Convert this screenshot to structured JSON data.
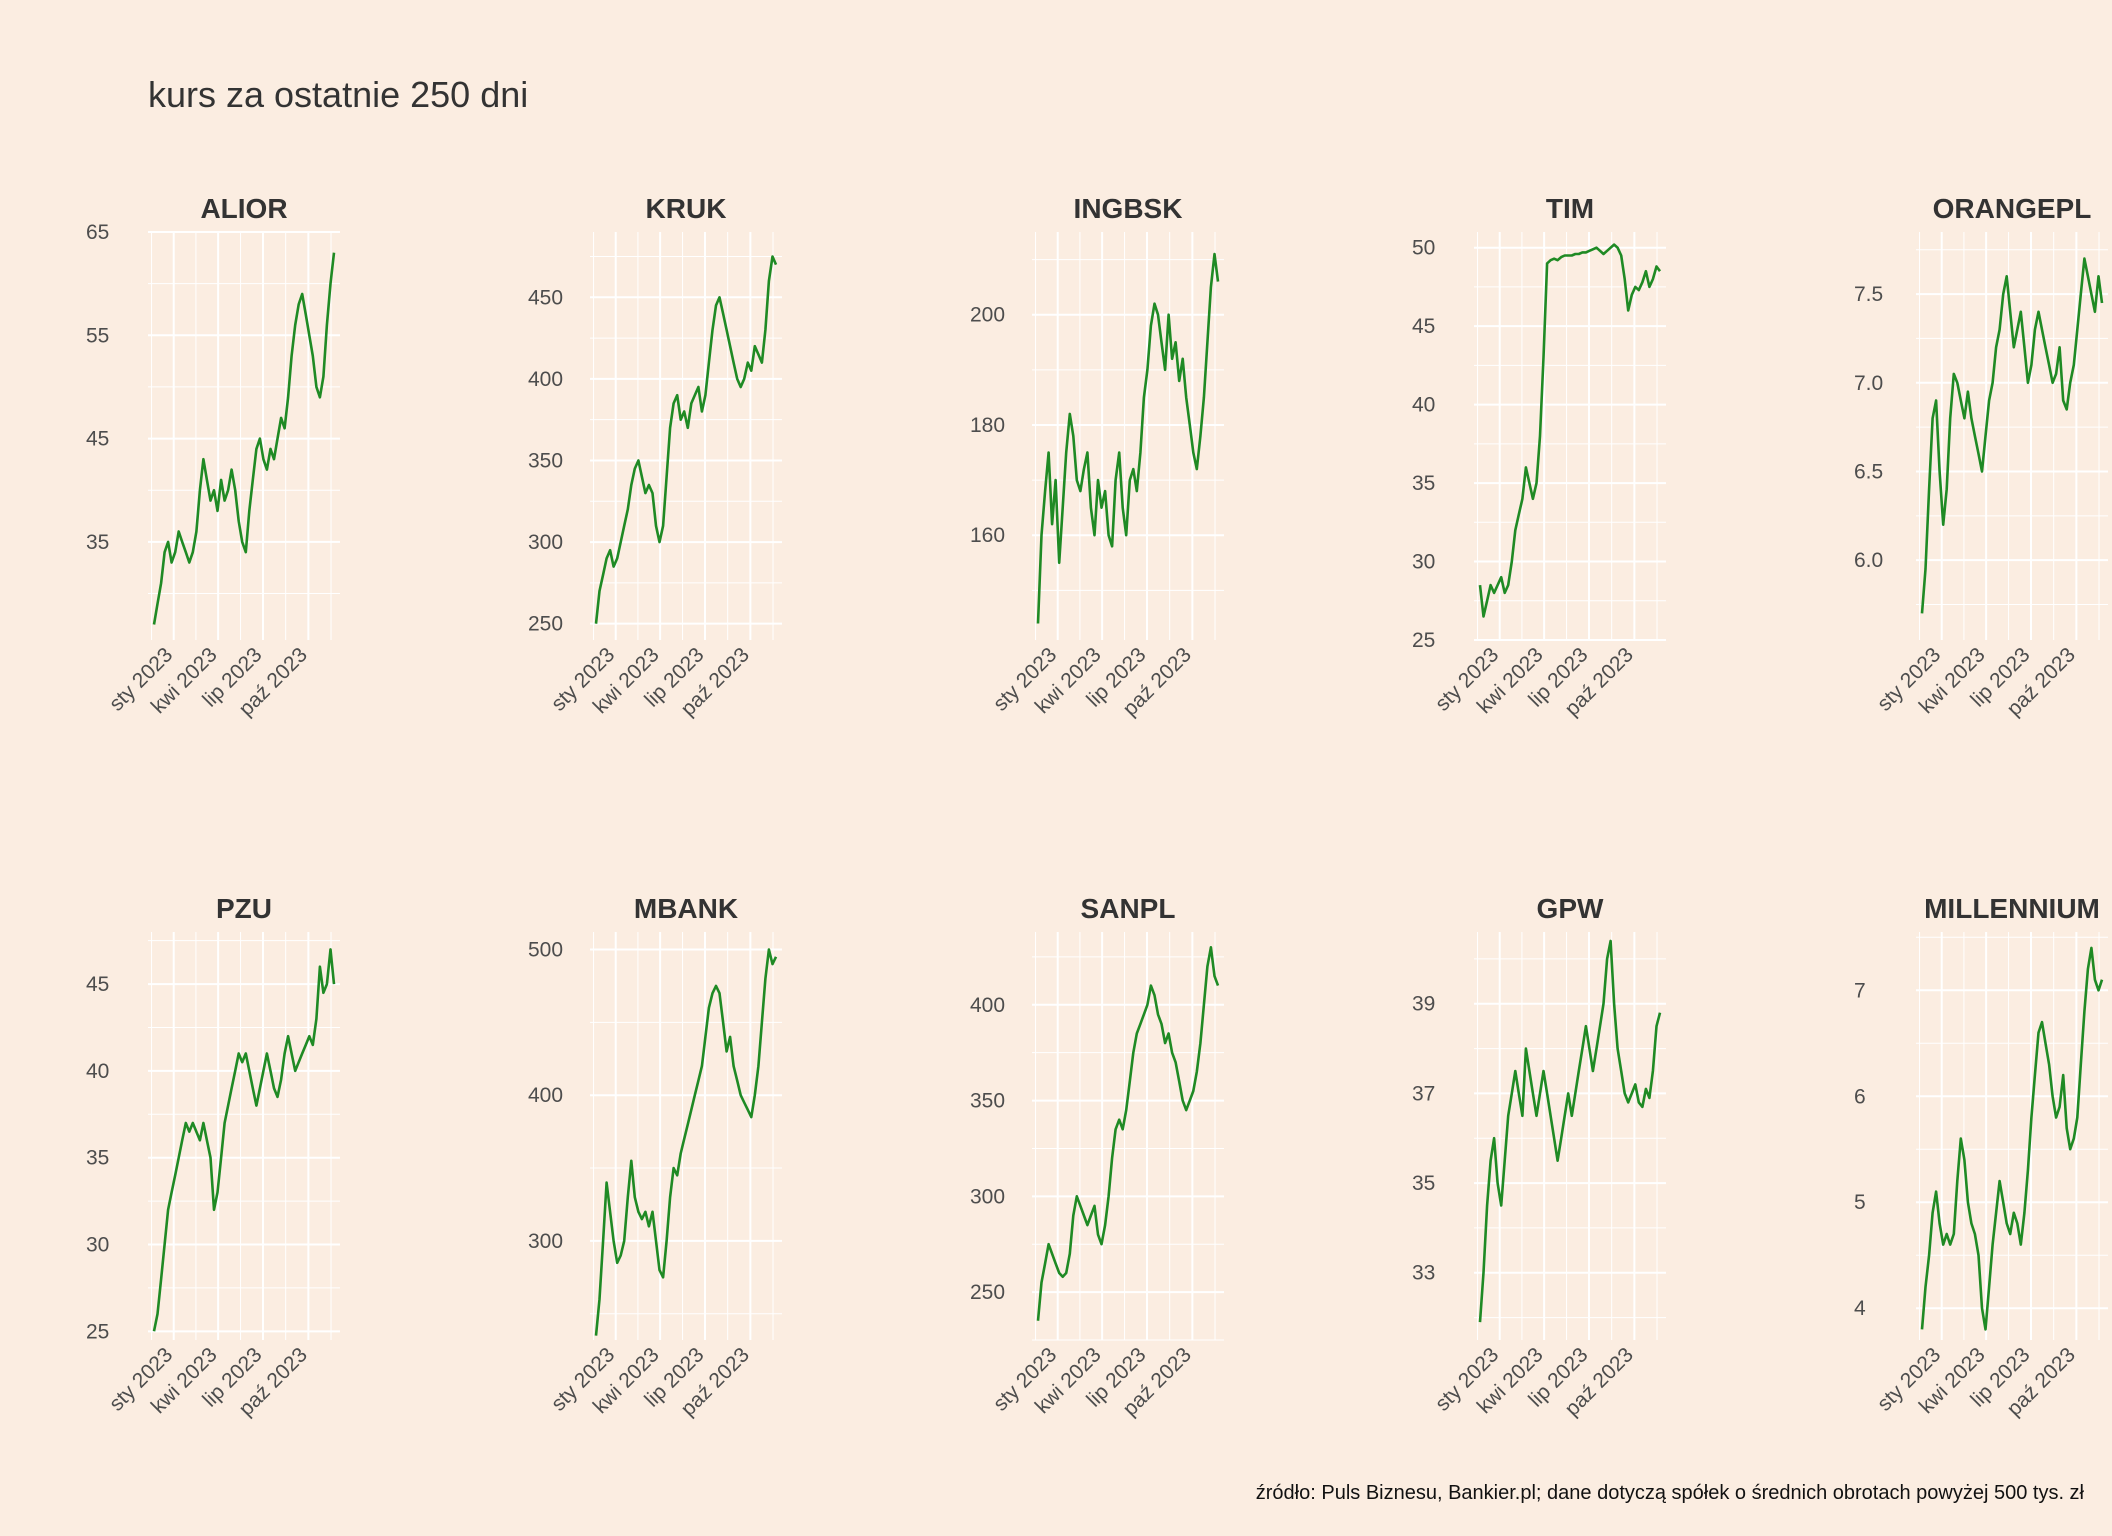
{
  "title": "kurs za ostatnie 250 dni",
  "caption": "źródło: Puls Biznesu, Bankier.pl; dane dotyczą spółek o średnich obrotach powyżej 500 tys. zł",
  "colors": {
    "background": "#FBEDE1",
    "line": "#1F8A24",
    "grid": "#FFFFFF",
    "text": "#4D4D4D"
  },
  "chart_data": [
    {
      "type": "line",
      "title": "ALIOR",
      "x_start": "2022-11-22",
      "x_end": "2023-11-22",
      "xticks": [
        "sty 2023",
        "kwi 2023",
        "lip 2023",
        "paź 2023"
      ],
      "ylim": [
        25.5,
        65
      ],
      "yticks": [
        35,
        45,
        55,
        65
      ],
      "y": [
        27,
        29,
        31,
        34,
        35,
        33,
        34,
        36,
        35,
        34,
        33,
        34,
        36,
        40,
        43,
        41,
        39,
        40,
        38,
        41,
        39,
        40,
        42,
        40,
        37,
        35,
        34,
        38,
        41,
        44,
        45,
        43,
        42,
        44,
        43,
        45,
        47,
        46,
        49,
        53,
        56,
        58,
        59,
        57,
        55,
        53,
        50,
        49,
        51,
        56,
        60,
        63
      ]
    },
    {
      "type": "line",
      "title": "KRUK",
      "x_start": "2022-11-22",
      "x_end": "2023-11-22",
      "xticks": [
        "sty 2023",
        "kwi 2023",
        "lip 2023",
        "paź 2023"
      ],
      "ylim": [
        240,
        490
      ],
      "yticks": [
        250,
        300,
        350,
        400,
        450
      ],
      "y": [
        250,
        270,
        280,
        290,
        295,
        285,
        290,
        300,
        310,
        320,
        335,
        345,
        350,
        340,
        330,
        335,
        330,
        310,
        300,
        310,
        340,
        370,
        385,
        390,
        375,
        380,
        370,
        385,
        390,
        395,
        380,
        390,
        410,
        430,
        445,
        450,
        440,
        430,
        420,
        410,
        400,
        395,
        400,
        410,
        405,
        420,
        415,
        410,
        430,
        460,
        475,
        470
      ]
    },
    {
      "type": "line",
      "title": "INGBSK",
      "x_start": "2022-11-22",
      "x_end": "2023-11-22",
      "xticks": [
        "sty 2023",
        "kwi 2023",
        "lip 2023",
        "paź 2023"
      ],
      "ylim": [
        141,
        215
      ],
      "yticks": [
        160,
        180,
        200
      ],
      "y": [
        144,
        160,
        168,
        175,
        162,
        170,
        155,
        165,
        175,
        182,
        178,
        170,
        168,
        172,
        175,
        165,
        160,
        170,
        165,
        168,
        160,
        158,
        170,
        175,
        165,
        160,
        170,
        172,
        168,
        175,
        185,
        190,
        198,
        202,
        200,
        195,
        190,
        200,
        192,
        195,
        188,
        192,
        185,
        180,
        175,
        172,
        178,
        185,
        195,
        205,
        211,
        206
      ]
    },
    {
      "type": "line",
      "title": "TIM",
      "x_start": "2022-11-22",
      "x_end": "2023-11-22",
      "xticks": [
        "sty 2023",
        "kwi 2023",
        "lip 2023",
        "paź 2023"
      ],
      "ylim": [
        25,
        51
      ],
      "yticks": [
        25,
        30,
        35,
        40,
        45,
        50
      ],
      "y": [
        28.5,
        26.5,
        27.5,
        28.5,
        28,
        28.5,
        29,
        28,
        28.5,
        30,
        32,
        33,
        34,
        36,
        35,
        34,
        35,
        38,
        43,
        49,
        49.2,
        49.3,
        49.2,
        49.4,
        49.5,
        49.5,
        49.5,
        49.6,
        49.6,
        49.7,
        49.7,
        49.8,
        49.9,
        50,
        49.8,
        49.6,
        49.8,
        50,
        50.2,
        50,
        49.5,
        48,
        46,
        47,
        47.5,
        47.3,
        47.8,
        48.5,
        47.5,
        48,
        48.8,
        48.5
      ]
    },
    {
      "type": "line",
      "title": "ORANGEPL",
      "x_start": "2022-11-22",
      "x_end": "2023-11-22",
      "xticks": [
        "sty 2023",
        "kwi 2023",
        "lip 2023",
        "paź 2023"
      ],
      "ylim": [
        5.55,
        7.85
      ],
      "yticks": [
        6.0,
        6.5,
        7.0,
        7.5
      ],
      "y": [
        5.7,
        5.95,
        6.4,
        6.8,
        6.9,
        6.5,
        6.2,
        6.4,
        6.8,
        7.05,
        7.0,
        6.9,
        6.8,
        6.95,
        6.8,
        6.7,
        6.6,
        6.5,
        6.7,
        6.9,
        7.0,
        7.2,
        7.3,
        7.5,
        7.6,
        7.4,
        7.2,
        7.3,
        7.4,
        7.2,
        7.0,
        7.1,
        7.3,
        7.4,
        7.3,
        7.2,
        7.1,
        7.0,
        7.05,
        7.2,
        6.9,
        6.85,
        7.0,
        7.1,
        7.3,
        7.5,
        7.7,
        7.6,
        7.5,
        7.4,
        7.6,
        7.45
      ]
    },
    {
      "type": "line",
      "title": "PZU",
      "x_start": "2022-11-22",
      "x_end": "2023-11-22",
      "xticks": [
        "sty 2023",
        "kwi 2023",
        "lip 2023",
        "paź 2023"
      ],
      "ylim": [
        24.5,
        48
      ],
      "yticks": [
        25,
        30,
        35,
        40,
        45
      ],
      "y": [
        25,
        26,
        28,
        30,
        32,
        33,
        34,
        35,
        36,
        37,
        36.5,
        37,
        36.5,
        36,
        37,
        36,
        35,
        32,
        33,
        35,
        37,
        38,
        39,
        40,
        41,
        40.5,
        41,
        40,
        39,
        38,
        39,
        40,
        41,
        40,
        39,
        38.5,
        39.5,
        41,
        42,
        41,
        40,
        40.5,
        41,
        41.5,
        42,
        41.5,
        43,
        46,
        44.5,
        45,
        47,
        45
      ]
    },
    {
      "type": "line",
      "title": "MBANK",
      "x_start": "2022-11-22",
      "x_end": "2023-11-22",
      "xticks": [
        "sty 2023",
        "kwi 2023",
        "lip 2023",
        "paź 2023"
      ],
      "ylim": [
        232,
        512
      ],
      "yticks": [
        300,
        400,
        500
      ],
      "y": [
        235,
        260,
        300,
        340,
        320,
        300,
        285,
        290,
        300,
        330,
        355,
        330,
        320,
        315,
        320,
        310,
        320,
        300,
        280,
        275,
        300,
        330,
        350,
        345,
        360,
        370,
        380,
        390,
        400,
        410,
        420,
        440,
        460,
        470,
        475,
        470,
        450,
        430,
        440,
        420,
        410,
        400,
        395,
        390,
        385,
        400,
        420,
        450,
        480,
        500,
        490,
        495
      ]
    },
    {
      "type": "line",
      "title": "SANPL",
      "x_start": "2022-11-22",
      "x_end": "2023-11-22",
      "xticks": [
        "sty 2023",
        "kwi 2023",
        "lip 2023",
        "paź 2023"
      ],
      "ylim": [
        225,
        438
      ],
      "yticks": [
        250,
        300,
        350,
        400
      ],
      "y": [
        235,
        255,
        265,
        275,
        270,
        265,
        260,
        258,
        260,
        270,
        290,
        300,
        295,
        290,
        285,
        290,
        295,
        280,
        275,
        285,
        300,
        320,
        335,
        340,
        335,
        345,
        360,
        375,
        385,
        390,
        395,
        400,
        410,
        405,
        395,
        390,
        380,
        385,
        375,
        370,
        360,
        350,
        345,
        350,
        355,
        365,
        380,
        400,
        420,
        430,
        415,
        410
      ]
    },
    {
      "type": "line",
      "title": "GPW",
      "x_start": "2022-11-22",
      "x_end": "2023-11-22",
      "xticks": [
        "sty 2023",
        "kwi 2023",
        "lip 2023",
        "paź 2023"
      ],
      "ylim": [
        31.5,
        40.6
      ],
      "yticks": [
        33,
        35,
        37,
        39
      ],
      "y": [
        31.9,
        33,
        34.5,
        35.5,
        36,
        35,
        34.5,
        35.5,
        36.5,
        37,
        37.5,
        37,
        36.5,
        38,
        37.5,
        37,
        36.5,
        37,
        37.5,
        37,
        36.5,
        36,
        35.5,
        36,
        36.5,
        37,
        36.5,
        37,
        37.5,
        38,
        38.5,
        38,
        37.5,
        38,
        38.5,
        39,
        40,
        40.4,
        39,
        38,
        37.5,
        37,
        36.8,
        37,
        37.2,
        36.8,
        36.7,
        37.1,
        36.9,
        37.5,
        38.5,
        38.8
      ]
    },
    {
      "type": "line",
      "title": "MILLENNIUM",
      "x_start": "2022-11-22",
      "x_end": "2023-11-22",
      "xticks": [
        "sty 2023",
        "kwi 2023",
        "lip 2023",
        "paź 2023"
      ],
      "ylim": [
        3.7,
        7.55
      ],
      "yticks": [
        4,
        5,
        6,
        7
      ],
      "y": [
        3.8,
        4.2,
        4.5,
        4.9,
        5.1,
        4.8,
        4.6,
        4.7,
        4.6,
        4.7,
        5.2,
        5.6,
        5.4,
        5.0,
        4.8,
        4.7,
        4.5,
        4.0,
        3.8,
        4.2,
        4.6,
        4.9,
        5.2,
        5.0,
        4.8,
        4.7,
        4.9,
        4.8,
        4.6,
        4.9,
        5.3,
        5.8,
        6.2,
        6.6,
        6.7,
        6.5,
        6.3,
        6.0,
        5.8,
        5.9,
        6.2,
        5.7,
        5.5,
        5.6,
        5.8,
        6.3,
        6.8,
        7.2,
        7.4,
        7.1,
        7.0,
        7.1
      ]
    }
  ]
}
